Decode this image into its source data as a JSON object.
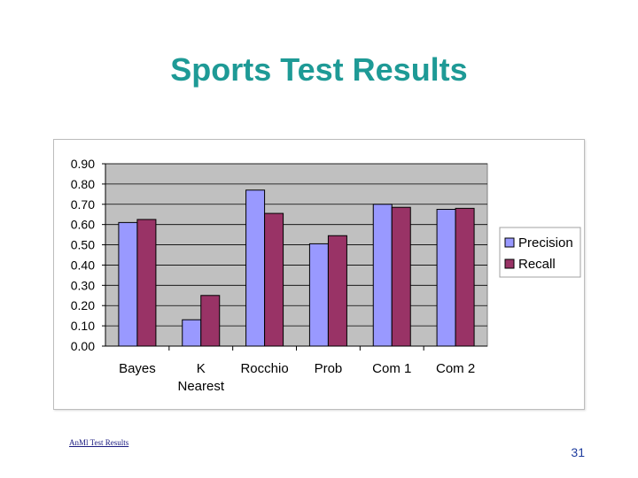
{
  "slide": {
    "title": "Sports Test Results",
    "footer_link": "AnMl Test Results",
    "page_number": "31"
  },
  "chart_data": {
    "type": "bar",
    "categories": [
      [
        "Bayes"
      ],
      [
        "K",
        "Nearest"
      ],
      [
        "Rocchio"
      ],
      [
        "Prob"
      ],
      [
        "Com 1"
      ],
      [
        "Com 2"
      ]
    ],
    "series": [
      {
        "name": "Precision",
        "values": [
          0.61,
          0.13,
          0.77,
          0.505,
          0.7,
          0.675
        ],
        "color": "#9999ff"
      },
      {
        "name": "Recall",
        "values": [
          0.625,
          0.25,
          0.655,
          0.545,
          0.685,
          0.68
        ],
        "color": "#993366"
      }
    ],
    "ylim": [
      0,
      0.9
    ],
    "yticks": [
      "0.00",
      "0.10",
      "0.20",
      "0.30",
      "0.40",
      "0.50",
      "0.60",
      "0.70",
      "0.80",
      "0.90"
    ],
    "grid": true,
    "plot_background": "#c0c0c0",
    "legend_position": "right"
  }
}
